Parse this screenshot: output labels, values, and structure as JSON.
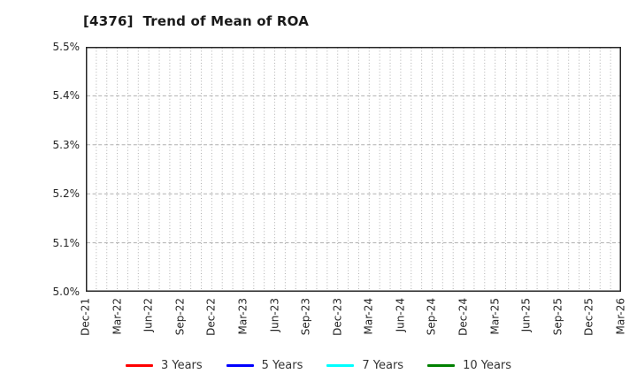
{
  "chart_data": {
    "type": "line",
    "title": "[4376]  Trend of Mean of ROA",
    "x_tick_labels": [
      "Dec-21",
      "Mar-22",
      "Jun-22",
      "Sep-22",
      "Dec-22",
      "Mar-23",
      "Jun-23",
      "Sep-23",
      "Dec-23",
      "Mar-24",
      "Jun-24",
      "Sep-24",
      "Dec-24",
      "Mar-25",
      "Jun-25",
      "Sep-25",
      "Dec-25",
      "Mar-26"
    ],
    "months_per_x_tick": 3,
    "y_ticks": [
      {
        "value": 5.0,
        "label": "5.0%"
      },
      {
        "value": 5.1,
        "label": "5.1%"
      },
      {
        "value": 5.2,
        "label": "5.2%"
      },
      {
        "value": 5.3,
        "label": "5.3%"
      },
      {
        "value": 5.4,
        "label": "5.4%"
      },
      {
        "value": 5.5,
        "label": "5.5%"
      }
    ],
    "ylim": [
      5.0,
      5.5
    ],
    "y_unit": "%",
    "grid": true,
    "legend_position": "bottom",
    "series": [
      {
        "name": "3 Years",
        "color": "#ff0000",
        "values": []
      },
      {
        "name": "5 Years",
        "color": "#0000ff",
        "values": []
      },
      {
        "name": "7 Years",
        "color": "#00ffff",
        "values": []
      },
      {
        "name": "10 Years",
        "color": "#008000",
        "values": []
      }
    ],
    "grid_color": "#b0b0b0",
    "frame_color": "#262626"
  }
}
